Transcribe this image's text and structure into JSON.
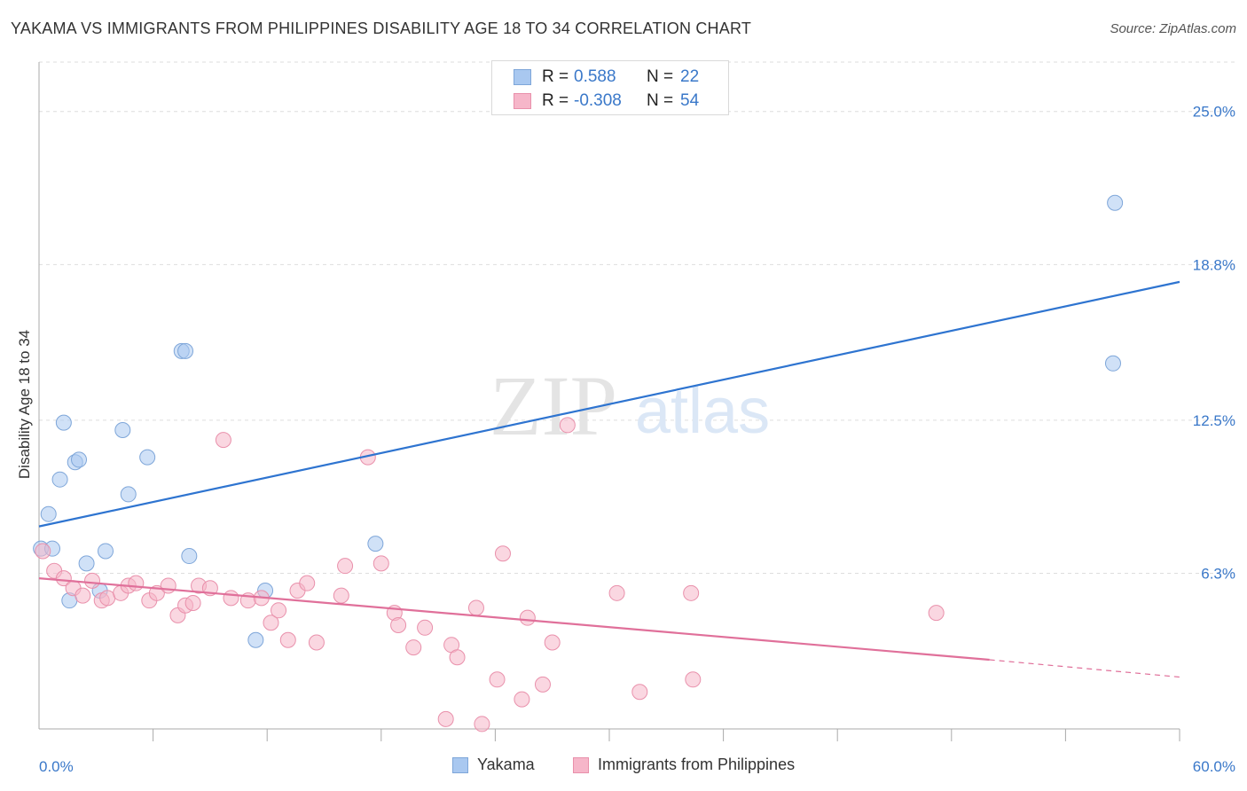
{
  "header": {
    "title": "YAKAMA VS IMMIGRANTS FROM PHILIPPINES DISABILITY AGE 18 TO 34 CORRELATION CHART",
    "source": "Source: ZipAtlas.com"
  },
  "watermark": {
    "zip": "ZIP",
    "atlas": "atlas"
  },
  "stats": [
    {
      "swatch_color": "#a9c8f0",
      "r_label": "R =",
      "r_value": "0.588",
      "n_label": "N =",
      "n_value": "22"
    },
    {
      "swatch_color": "#f6b6c9",
      "r_label": "R =",
      "r_value": "-0.308",
      "n_label": "N =",
      "n_value": "54"
    }
  ],
  "legend": [
    {
      "label": "Yakama",
      "color": "#a9c8f0"
    },
    {
      "label": "Immigrants from Philippines",
      "color": "#f6b6c9"
    }
  ],
  "chart_data": {
    "type": "scatter",
    "title": "YAKAMA VS IMMIGRANTS FROM PHILIPPINES DISABILITY AGE 18 TO 34 CORRELATION CHART",
    "xlabel": "",
    "ylabel": "Disability Age 18 to 34",
    "xlim": [
      0,
      60
    ],
    "ylim": [
      0,
      27
    ],
    "x_tick_labels": [
      "0.0%",
      "60.0%"
    ],
    "y_ticks": [
      6.3,
      12.5,
      18.8,
      25.0
    ],
    "y_tick_labels": [
      "6.3%",
      "12.5%",
      "18.8%",
      "25.0%"
    ],
    "grid": true,
    "legend_position": "bottom",
    "series": [
      {
        "name": "Yakama",
        "color": "#a9c8f0",
        "edge_color": "#7ea6d9",
        "trend_color": "#2e74d0",
        "trend": {
          "x": [
            0,
            60
          ],
          "y": [
            8.2,
            18.1
          ]
        },
        "points": [
          [
            0.1,
            7.3
          ],
          [
            0.5,
            8.7
          ],
          [
            0.7,
            7.3
          ],
          [
            1.1,
            10.1
          ],
          [
            1.3,
            12.4
          ],
          [
            1.6,
            5.2
          ],
          [
            1.9,
            10.8
          ],
          [
            2.1,
            10.9
          ],
          [
            2.5,
            6.7
          ],
          [
            3.2,
            5.6
          ],
          [
            3.5,
            7.2
          ],
          [
            4.4,
            12.1
          ],
          [
            4.7,
            9.5
          ],
          [
            5.7,
            11.0
          ],
          [
            7.5,
            15.3
          ],
          [
            7.7,
            15.3
          ],
          [
            7.9,
            7.0
          ],
          [
            11.4,
            3.6
          ],
          [
            11.9,
            5.6
          ],
          [
            17.7,
            7.5
          ],
          [
            56.5,
            14.8
          ],
          [
            56.6,
            21.3
          ]
        ]
      },
      {
        "name": "Immigrants from Philippines",
        "color": "#f6b6c9",
        "edge_color": "#e990ab",
        "trend_color": "#e0709a",
        "trend": {
          "x": [
            0,
            50
          ],
          "y": [
            6.1,
            2.8
          ]
        },
        "trend_dashed_extension": {
          "x": [
            50,
            60
          ],
          "y": [
            2.8,
            2.1
          ]
        },
        "points": [
          [
            0.2,
            7.2
          ],
          [
            0.8,
            6.4
          ],
          [
            1.3,
            6.1
          ],
          [
            1.8,
            5.7
          ],
          [
            2.3,
            5.4
          ],
          [
            2.8,
            6.0
          ],
          [
            3.3,
            5.2
          ],
          [
            3.6,
            5.3
          ],
          [
            4.3,
            5.5
          ],
          [
            4.7,
            5.8
          ],
          [
            5.1,
            5.9
          ],
          [
            5.8,
            5.2
          ],
          [
            6.2,
            5.5
          ],
          [
            6.8,
            5.8
          ],
          [
            7.3,
            4.6
          ],
          [
            7.7,
            5.0
          ],
          [
            8.1,
            5.1
          ],
          [
            8.4,
            5.8
          ],
          [
            9.0,
            5.7
          ],
          [
            9.7,
            11.7
          ],
          [
            10.1,
            5.3
          ],
          [
            11.0,
            5.2
          ],
          [
            11.7,
            5.3
          ],
          [
            12.2,
            4.3
          ],
          [
            12.6,
            4.8
          ],
          [
            13.1,
            3.6
          ],
          [
            13.6,
            5.6
          ],
          [
            14.1,
            5.9
          ],
          [
            14.6,
            3.5
          ],
          [
            15.9,
            5.4
          ],
          [
            16.1,
            6.6
          ],
          [
            17.3,
            11.0
          ],
          [
            18.0,
            6.7
          ],
          [
            18.7,
            4.7
          ],
          [
            18.9,
            4.2
          ],
          [
            19.7,
            3.3
          ],
          [
            20.3,
            4.1
          ],
          [
            21.4,
            0.4
          ],
          [
            21.7,
            3.4
          ],
          [
            22.0,
            2.9
          ],
          [
            23.0,
            4.9
          ],
          [
            23.3,
            0.2
          ],
          [
            24.1,
            2.0
          ],
          [
            24.4,
            7.1
          ],
          [
            25.4,
            1.2
          ],
          [
            25.7,
            4.5
          ],
          [
            26.5,
            1.8
          ],
          [
            27.0,
            3.5
          ],
          [
            27.8,
            12.3
          ],
          [
            30.4,
            5.5
          ],
          [
            31.6,
            1.5
          ],
          [
            34.3,
            5.5
          ],
          [
            34.4,
            2.0
          ],
          [
            47.2,
            4.7
          ]
        ]
      }
    ]
  }
}
